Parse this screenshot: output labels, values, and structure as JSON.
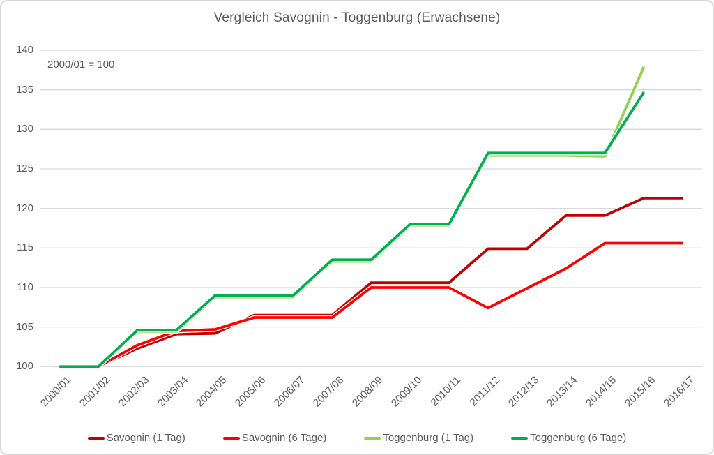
{
  "title": "Vergleich Savognin - Toggenburg (Erwachsene)",
  "annotation": "2000/01 = 100",
  "colors": {
    "gridline": "#d9d9d9",
    "axis_text": "#595959",
    "title_text": "#595959",
    "background": "#ffffff",
    "border": "#d7d7d7",
    "line_casing": "#ffffff"
  },
  "chart_data": {
    "type": "line",
    "title": "Vergleich Savognin - Toggenburg (Erwachsene)",
    "annotation": "2000/01 = 100",
    "categories": [
      "2000/01",
      "2001/02",
      "2002/03",
      "2003/04",
      "2004/05",
      "2005/06",
      "2006/07",
      "2007/08",
      "2008/09",
      "2009/10",
      "2010/11",
      "2011/12",
      "2012/13",
      "2013/14",
      "2014/15",
      "2015/16",
      "2016/17"
    ],
    "series": [
      {
        "name": "Savognin (1 Tag)",
        "color": "#C00000",
        "values": [
          100,
          100,
          102.3,
          104.1,
          104.2,
          106.5,
          106.5,
          106.5,
          110.6,
          110.6,
          110.6,
          114.9,
          114.9,
          119.1,
          119.1,
          121.3,
          121.3
        ]
      },
      {
        "name": "Savognin (6 Tage)",
        "color": "#FF0000",
        "values": [
          100,
          100,
          102.7,
          104.5,
          104.7,
          106.2,
          106.2,
          106.2,
          110.0,
          110.0,
          110.0,
          107.4,
          109.9,
          112.4,
          115.6,
          115.6,
          115.6
        ]
      },
      {
        "name": "Toggenburg (1 Tag)",
        "color": "#92D050",
        "values": [
          100,
          100,
          104.4,
          104.4,
          108.8,
          108.8,
          108.8,
          113.3,
          113.3,
          117.8,
          117.8,
          126.7,
          126.7,
          126.7,
          126.6,
          137.9,
          null
        ]
      },
      {
        "name": "Toggenburg (6 Tage)",
        "color": "#00B050",
        "values": [
          100,
          100,
          104.6,
          104.6,
          109.0,
          109.0,
          109.0,
          113.5,
          113.5,
          118.0,
          118.0,
          127.0,
          127.0,
          127.0,
          127.0,
          134.7,
          null
        ]
      }
    ],
    "xlabel": "",
    "ylabel": "",
    "ylim": [
      100,
      140
    ],
    "ytick_step": 5,
    "yticks": [
      100,
      105,
      110,
      115,
      120,
      125,
      130,
      135,
      140
    ],
    "grid": true,
    "legend_position": "bottom"
  }
}
